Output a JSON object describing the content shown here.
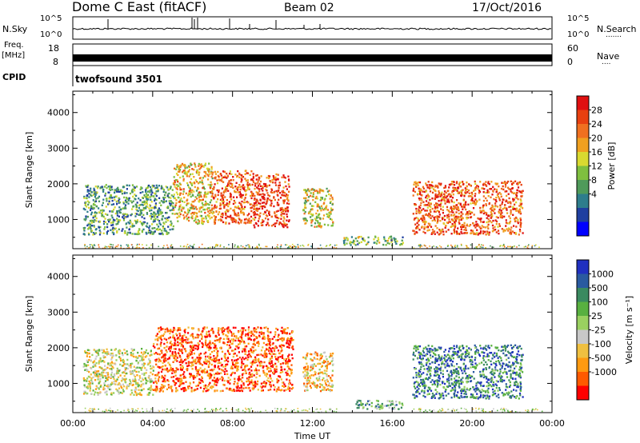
{
  "header": {
    "station": "Dome C East (fitACF)",
    "beam": "Beam 02",
    "date": "17/Oct/2016"
  },
  "strips": {
    "nsky_label": "N.Sky",
    "nsky_ticks": [
      "10^5",
      "10^0"
    ],
    "nsearch_label": "N.Search",
    "nsearch_ticks": [
      "10^5",
      "10^0"
    ],
    "freq_label_1": "Freq.",
    "freq_label_2": "[MHz]",
    "freq_ticks": [
      "18",
      "8"
    ],
    "nave_label": "Nave",
    "nave_ticks": [
      "60",
      "0"
    ],
    "cpid_label": "CPID",
    "cpid_value": "twofsound 3501"
  },
  "colors": {
    "power_scale": [
      "#0000ff",
      "#1f3fa0",
      "#2e7d8c",
      "#4f9a5a",
      "#7fbf3f",
      "#d9d930",
      "#f0a020",
      "#f07020",
      "#e84010",
      "#e01010"
    ],
    "velocity_scale": [
      "#ff0000",
      "#ff5a00",
      "#ff9a10",
      "#f0c040",
      "#c8c8c8",
      "#9ad060",
      "#58b040",
      "#3a8a60",
      "#2a5aa0",
      "#2030c0"
    ]
  },
  "chart_data": [
    {
      "type": "heatmap",
      "panel": "power",
      "ylabel": "Slant Range [km]",
      "yticks": [
        1000,
        2000,
        3000,
        4000
      ],
      "ylim": [
        180,
        4600
      ],
      "xticks": [
        "00:00",
        "04:00",
        "08:00",
        "12:00",
        "16:00",
        "20:00",
        "00:00"
      ],
      "xlim": [
        0,
        24
      ],
      "colorbar": {
        "label": "Power [dB]",
        "ticks": [
          "28",
          "24",
          "20",
          "16",
          "12",
          "8",
          "4"
        ],
        "range": [
          0,
          30
        ]
      },
      "features": [
        {
          "t0": 0.5,
          "t1": 5,
          "r0": 600,
          "r1": 2000,
          "level": 0.35
        },
        {
          "t0": 5,
          "t1": 7,
          "r0": 900,
          "r1": 2600,
          "level": 0.6
        },
        {
          "t0": 7,
          "t1": 9,
          "r0": 900,
          "r1": 2400,
          "level": 0.8
        },
        {
          "t0": 9,
          "t1": 10.8,
          "r0": 800,
          "r1": 2300,
          "level": 0.85
        },
        {
          "t0": 11.5,
          "t1": 13,
          "r0": 800,
          "r1": 1900,
          "level": 0.55
        },
        {
          "t0": 17,
          "t1": 22.5,
          "r0": 600,
          "r1": 2100,
          "level": 0.8
        },
        {
          "t0": 13.5,
          "t1": 16.5,
          "r0": 300,
          "r1": 550,
          "level": 0.4
        }
      ]
    },
    {
      "type": "heatmap",
      "panel": "velocity",
      "ylabel": "Slant Range [km]",
      "yticks": [
        1000,
        2000,
        3000,
        4000
      ],
      "ylim": [
        180,
        4600
      ],
      "xticks": [
        "00:00",
        "04:00",
        "08:00",
        "12:00",
        "16:00",
        "20:00",
        "00:00"
      ],
      "xlim": [
        0,
        24
      ],
      "xlabel": "Time UT",
      "colorbar": {
        "label": "Velocity [m s⁻¹]",
        "ticks": [
          "1000",
          "500",
          "100",
          "25",
          "-25",
          "-100",
          "-500",
          "-1000"
        ]
      },
      "features": [
        {
          "t0": 0.5,
          "t1": 4,
          "r0": 700,
          "r1": 2000,
          "level": 0.45
        },
        {
          "t0": 4,
          "t1": 11,
          "r0": 800,
          "r1": 2600,
          "level": 0.15
        },
        {
          "t0": 11.5,
          "t1": 13,
          "r0": 800,
          "r1": 1900,
          "level": 0.35
        },
        {
          "t0": 14,
          "t1": 16.5,
          "r0": 300,
          "r1": 550,
          "level": 0.65
        },
        {
          "t0": 17,
          "t1": 22.5,
          "r0": 600,
          "r1": 2100,
          "level": 0.78
        }
      ]
    }
  ]
}
